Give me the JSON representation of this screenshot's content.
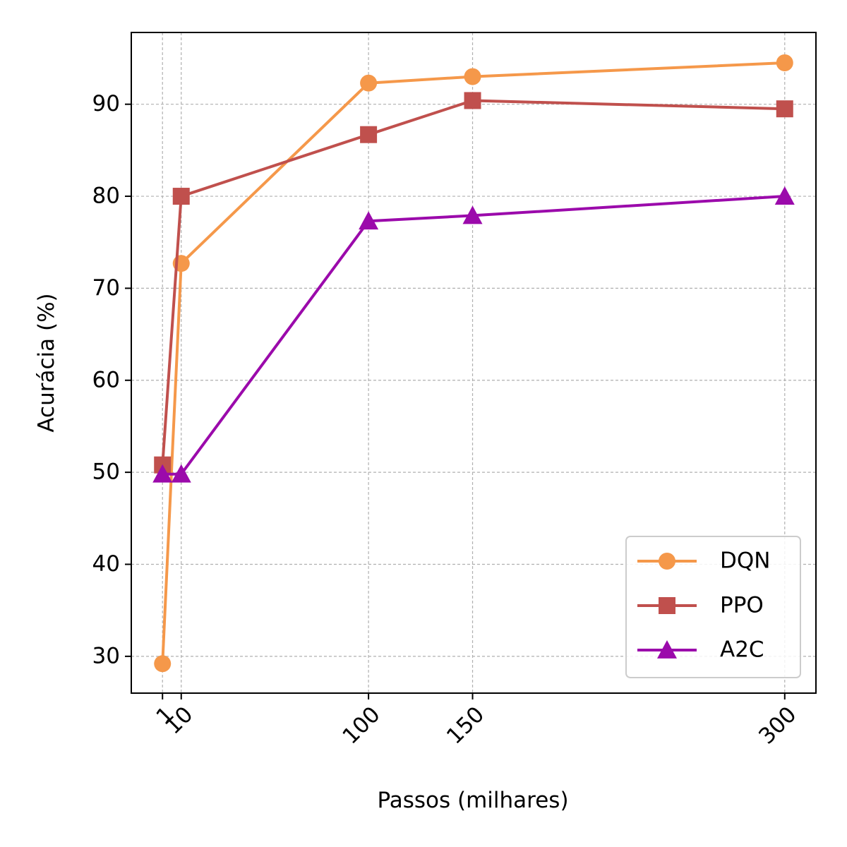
{
  "chart_data": {
    "type": "line",
    "title": "",
    "xlabel": "Passos (milhares)",
    "ylabel": "Acurácia (%)",
    "x": [
      1,
      10,
      100,
      150,
      300
    ],
    "xticks": [
      1,
      10,
      100,
      150,
      300
    ],
    "xlim": [
      -14.0,
      315.0
    ],
    "yticks": [
      30,
      40,
      50,
      60,
      70,
      80,
      90
    ],
    "ylim": [
      26.0,
      97.8
    ],
    "grid": true,
    "legend_position": "lower-right",
    "series": [
      {
        "name": "DQN",
        "marker": "circle",
        "color": "#f5984a",
        "values": [
          29.2,
          72.7,
          92.3,
          93.0,
          94.5
        ]
      },
      {
        "name": "PPO",
        "marker": "square",
        "color": "#c0504d",
        "values": [
          50.8,
          80.0,
          86.7,
          90.4,
          89.5
        ]
      },
      {
        "name": "A2C",
        "marker": "triangle",
        "color": "#9b0aab",
        "values": [
          49.8,
          49.8,
          77.3,
          77.9,
          80.0
        ]
      }
    ]
  }
}
